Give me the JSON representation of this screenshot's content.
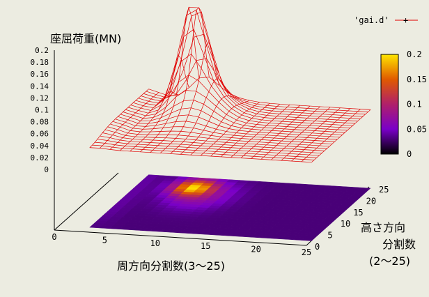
{
  "chart_data": {
    "type": "surface3d",
    "title": "",
    "zlabel": "座屈荷重(MN)",
    "xlabel": "周方向分割数(3〜25)",
    "ylabel_line1": "高さ方向",
    "ylabel_line2": "分割数",
    "ylabel_line3": "(2〜25)",
    "legend": [
      {
        "name": "'gai.d'",
        "color": "#e00000"
      }
    ],
    "xlim": [
      0,
      25
    ],
    "ylim": [
      0,
      25
    ],
    "zlim": [
      0,
      0.2
    ],
    "x_ticks": [
      "0",
      "5",
      "10",
      "15",
      "20",
      "25"
    ],
    "y_ticks": [
      "0",
      "5",
      "10",
      "15",
      "20",
      "25"
    ],
    "z_ticks": [
      "0",
      "0.02",
      "0.04",
      "0.06",
      "0.08",
      "0.1",
      "0.12",
      "0.14",
      "0.16",
      "0.18",
      "0.2"
    ],
    "colorbar_ticks": [
      "0",
      "0.05",
      "0.1",
      "0.15",
      "0.2"
    ],
    "x_range_data": [
      3,
      25
    ],
    "y_range_data": [
      2,
      25
    ],
    "surface_samples": [
      {
        "x": 3,
        "y": 2,
        "z": 0.02
      },
      {
        "x": 3,
        "y": 25,
        "z": 0.04
      },
      {
        "x": 4,
        "y": 10,
        "z": 0.05
      },
      {
        "x": 8,
        "y": 20,
        "z": 0.16
      },
      {
        "x": 9,
        "y": 22,
        "z": 0.2
      },
      {
        "x": 10,
        "y": 20,
        "z": 0.12
      },
      {
        "x": 12,
        "y": 18,
        "z": 0.06
      },
      {
        "x": 15,
        "y": 15,
        "z": 0.035
      },
      {
        "x": 25,
        "y": 2,
        "z": 0.025
      },
      {
        "x": 25,
        "y": 25,
        "z": 0.03
      }
    ],
    "grid": false,
    "legend_position": "top-right",
    "colormap": "black-purple-red-orange-yellow"
  }
}
